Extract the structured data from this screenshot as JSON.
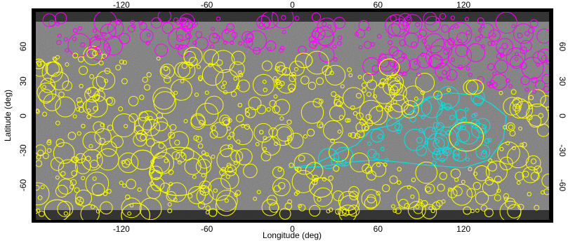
{
  "figure": {
    "xlabel": "Longitude (deg)",
    "ylabel": "Latitude (deg)",
    "x_ticks": [
      {
        "value": -120,
        "label": "-120"
      },
      {
        "value": -60,
        "label": "-60"
      },
      {
        "value": 0,
        "label": "0"
      },
      {
        "value": 60,
        "label": "60"
      },
      {
        "value": 120,
        "label": "120"
      }
    ],
    "y_ticks": [
      {
        "value": 60,
        "label": "60"
      },
      {
        "value": 30,
        "label": "30"
      },
      {
        "value": 0,
        "label": "0"
      },
      {
        "value": -30,
        "label": "-30"
      },
      {
        "value": -60,
        "label": "-60"
      }
    ],
    "xlim": [
      -180,
      180
    ],
    "ylim": [
      -90,
      90
    ],
    "colors": {
      "craters_main": "#ffff00",
      "craters_north": "#ff00ff",
      "craters_region": "#00e5e5",
      "basemap": "#7a7a7a"
    },
    "large_craters": [
      {
        "lon": -80,
        "lat": -48,
        "r": 20
      },
      {
        "lon": 122,
        "lat": -18,
        "r": 12
      },
      {
        "lon": -105,
        "lat": -38,
        "r": 8
      },
      {
        "lon": -165,
        "lat": -82,
        "r": 9
      },
      {
        "lon": -110,
        "lat": -86,
        "r": 10
      },
      {
        "lon": 20,
        "lat": -62,
        "r": 8
      },
      {
        "lon": 68,
        "lat": 42,
        "r": 7
      },
      {
        "lon": 8,
        "lat": 48,
        "r": 6
      },
      {
        "lon": 128,
        "lat": 25,
        "r": 6
      },
      {
        "lon": -178,
        "lat": 45,
        "r": 4
      }
    ],
    "region_outline": [
      [
        -3,
        -45
      ],
      [
        15,
        -42
      ],
      [
        30,
        -33
      ],
      [
        45,
        -25
      ],
      [
        55,
        -12
      ],
      [
        70,
        -8
      ],
      [
        85,
        5
      ],
      [
        95,
        15
      ],
      [
        110,
        20
      ],
      [
        128,
        18
      ],
      [
        140,
        10
      ],
      [
        150,
        0
      ],
      [
        148,
        -20
      ],
      [
        138,
        -38
      ],
      [
        120,
        -45
      ],
      [
        90,
        -42
      ],
      [
        60,
        -38
      ],
      [
        40,
        -40
      ],
      [
        20,
        -44
      ]
    ]
  }
}
